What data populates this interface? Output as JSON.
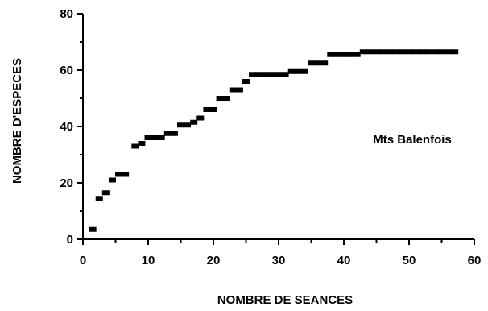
{
  "chart_data": {
    "type": "scatter",
    "title": "",
    "xlabel": "NOMBRE DE SEANCES",
    "ylabel": "NOMBRE D'ESPECES",
    "xlim": [
      0,
      60
    ],
    "ylim": [
      0,
      80
    ],
    "xticks": [
      0,
      10,
      20,
      30,
      40,
      50,
      60
    ],
    "yticks": [
      0,
      20,
      40,
      60,
      80
    ],
    "grid": false,
    "annotation": "Mts Balenfois",
    "series": [
      {
        "color": "#000000",
        "marker": "square",
        "points": [
          [
            1.5,
            3.5
          ],
          [
            2.5,
            14.5
          ],
          [
            3.5,
            16.5
          ],
          [
            4.5,
            21
          ],
          [
            5.5,
            23
          ],
          [
            6.5,
            23
          ],
          [
            8,
            33
          ],
          [
            9,
            34
          ],
          [
            10,
            36
          ],
          [
            11,
            36
          ],
          [
            12,
            36
          ],
          [
            13,
            37.5
          ],
          [
            14,
            37.5
          ],
          [
            15,
            40.5
          ],
          [
            16,
            40.5
          ],
          [
            17,
            41.5
          ],
          [
            18,
            43
          ],
          [
            19,
            46
          ],
          [
            20,
            46
          ],
          [
            21,
            50
          ],
          [
            22,
            50
          ],
          [
            23,
            53
          ],
          [
            24,
            53
          ],
          [
            25,
            56
          ],
          [
            26,
            58.5
          ],
          [
            27,
            58.5
          ],
          [
            28,
            58.5
          ],
          [
            29,
            58.5
          ],
          [
            30,
            58.5
          ],
          [
            31,
            58.5
          ],
          [
            32,
            59.5
          ],
          [
            33,
            59.5
          ],
          [
            34,
            59.5
          ],
          [
            35,
            62.5
          ],
          [
            36,
            62.5
          ],
          [
            37,
            62.5
          ],
          [
            38,
            65.5
          ],
          [
            39,
            65.5
          ],
          [
            40,
            65.5
          ],
          [
            41,
            65.5
          ],
          [
            42,
            65.5
          ],
          [
            43,
            66.5
          ],
          [
            44,
            66.5
          ],
          [
            45,
            66.5
          ],
          [
            46,
            66.5
          ],
          [
            47,
            66.5
          ],
          [
            48,
            66.5
          ],
          [
            49,
            66.5
          ],
          [
            50,
            66.5
          ],
          [
            51,
            66.5
          ],
          [
            52,
            66.5
          ],
          [
            53,
            66.5
          ],
          [
            54,
            66.5
          ],
          [
            55,
            66.5
          ],
          [
            56,
            66.5
          ],
          [
            57,
            66.5
          ]
        ]
      }
    ]
  }
}
